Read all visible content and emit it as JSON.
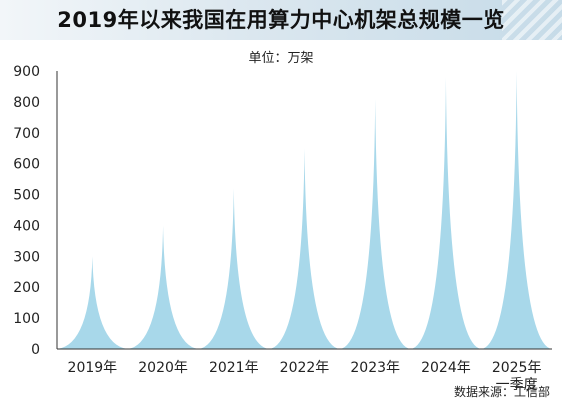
{
  "title": "2019年以来我国在用算力中心机架总规模一览",
  "unit_label": "单位：万架",
  "source": "数据来源：工信部",
  "colors": {
    "area": "#a8d8ea",
    "axis": "#333333"
  },
  "chart_data": {
    "type": "area",
    "categories": [
      "2019年",
      "2020年",
      "2021年",
      "2022年",
      "2023年",
      "2024年",
      "2025年|一季度"
    ],
    "values": [
      300,
      400,
      520,
      650,
      810,
      880,
      900
    ],
    "ylabel": "万架",
    "ylim": [
      0,
      900
    ],
    "yticks": [
      0,
      100,
      200,
      300,
      400,
      500,
      600,
      700,
      800,
      900
    ],
    "grid": false
  }
}
